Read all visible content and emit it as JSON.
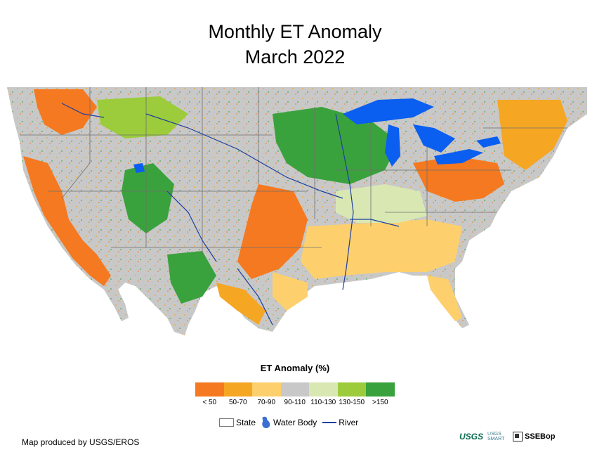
{
  "title": {
    "line1": "Monthly ET Anomaly",
    "line2": "March 2022"
  },
  "legend": {
    "title": "ET Anomaly (%)",
    "classes": [
      {
        "label": "< 50",
        "color": "#f47921"
      },
      {
        "label": "50-70",
        "color": "#f5a623"
      },
      {
        "label": "70-90",
        "color": "#fdd06d"
      },
      {
        "label": "90-110",
        "color": "#c8c8c8"
      },
      {
        "label": "110-130",
        "color": "#d9e8b3"
      },
      {
        "label": "130-150",
        "color": "#9ccc3c"
      },
      {
        "label": ">150",
        "color": "#3aa23d"
      }
    ]
  },
  "map_legend": {
    "state": "State",
    "water_body": "Water Body",
    "river": "River"
  },
  "colors": {
    "water": "#0a5ef0",
    "river": "#1d3fa0",
    "state_line": "#6f6f6f"
  },
  "credit": "Map produced by USGS/EROS",
  "logos": {
    "usgs": "USGS",
    "smart": "USGS SMART",
    "ssebop": "SSEBop"
  }
}
